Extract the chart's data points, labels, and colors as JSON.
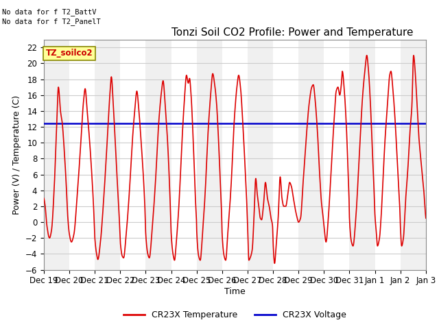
{
  "title": "Tonzi Soil CO2 Profile: Power and Temperature",
  "xlabel": "Time",
  "ylabel": "Power (V) / Temperature (C)",
  "ylim": [
    -6,
    23
  ],
  "yticks": [
    -6,
    -4,
    -2,
    0,
    2,
    4,
    6,
    8,
    10,
    12,
    14,
    16,
    18,
    20,
    22
  ],
  "annotation_lines": [
    "No data for f T2_BattV",
    "No data for f T2_PanelT"
  ],
  "legend_label": "TZ_soilco2",
  "legend_color": "#cc0000",
  "legend_bg": "#ffff99",
  "temp_color": "#dd0000",
  "volt_color": "#0000cc",
  "volt_value": 12.4,
  "background_color": "#ffffff",
  "grid_color": "#cccccc",
  "strip_colors": [
    "#f0f0f0",
    "#ffffff"
  ],
  "legend_entries": [
    "CR23X Temperature",
    "CR23X Voltage"
  ],
  "x_tick_labels": [
    "Dec 19",
    "Dec 20",
    "Dec 21",
    "Dec 22",
    "Dec 23",
    "Dec 24",
    "Dec 25",
    "Dec 26",
    "Dec 27",
    "Dec 28",
    "Dec 29",
    "Dec 30",
    "Dec 31",
    "Jan 1",
    "Jan 2",
    "Jan 3"
  ],
  "title_fontsize": 11,
  "axis_fontsize": 9,
  "tick_fontsize": 8.5,
  "figsize": [
    6.4,
    4.8
  ],
  "dpi": 100
}
